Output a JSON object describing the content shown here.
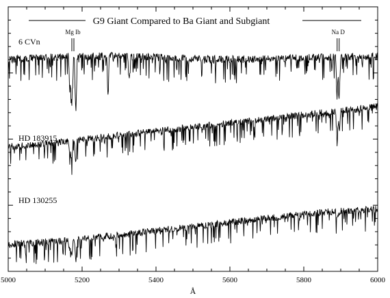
{
  "chart_data": {
    "type": "line",
    "title": "G9 Giant Compared to Ba Giant and Subgiant",
    "xlabel": "Å",
    "ylabel": "",
    "xlim": [
      5000,
      6000
    ],
    "x_ticks": [
      "5000",
      "5200",
      "5400",
      "5600",
      "5800",
      "6000"
    ],
    "grid": false,
    "line_labels": [
      {
        "text": "Mg Ib",
        "x": 5175
      },
      {
        "text": "Na D",
        "x": 5893
      }
    ],
    "series": [
      {
        "name": "6 CVn",
        "x": [
          5000,
          5050,
          5100,
          5150,
          5200,
          5250,
          5300,
          5350,
          5400,
          5450,
          5500,
          5550,
          5600,
          5650,
          5700,
          5750,
          5800,
          5850,
          5900,
          5950,
          6000
        ],
        "values": [
          0.95,
          0.97,
          0.98,
          0.99,
          0.99,
          1.0,
          1.0,
          0.99,
          0.98,
          0.97,
          0.96,
          0.95,
          0.95,
          0.95,
          0.96,
          0.97,
          0.98,
          0.99,
          0.99,
          0.99,
          1.0
        ],
        "lines": [
          {
            "x": 5167,
            "depth": 0.6
          },
          {
            "x": 5172,
            "depth": 0.8
          },
          {
            "x": 5183,
            "depth": 0.9
          },
          {
            "x": 5270,
            "depth": 0.4
          },
          {
            "x": 5328,
            "depth": 0.4
          },
          {
            "x": 5890,
            "depth": 0.65
          },
          {
            "x": 5896,
            "depth": 0.55
          }
        ]
      },
      {
        "name": "HD 183915",
        "x": [
          5000,
          5050,
          5100,
          5150,
          5200,
          5250,
          5300,
          5350,
          5400,
          5450,
          5500,
          5550,
          5600,
          5650,
          5700,
          5750,
          5800,
          5850,
          5900,
          5950,
          6000
        ],
        "values": [
          0.45,
          0.46,
          0.48,
          0.5,
          0.52,
          0.54,
          0.56,
          0.58,
          0.6,
          0.62,
          0.64,
          0.66,
          0.68,
          0.7,
          0.72,
          0.74,
          0.76,
          0.78,
          0.8,
          0.82,
          0.84
        ],
        "lines": [
          {
            "x": 5167,
            "depth": 0.3
          },
          {
            "x": 5172,
            "depth": 0.4
          },
          {
            "x": 5183,
            "depth": 0.45
          },
          {
            "x": 5890,
            "depth": 0.5
          },
          {
            "x": 5896,
            "depth": 0.4
          }
        ]
      },
      {
        "name": "HD 130255",
        "x": [
          5000,
          5050,
          5100,
          5150,
          5200,
          5250,
          5300,
          5350,
          5400,
          5450,
          5500,
          5550,
          5600,
          5650,
          5700,
          5750,
          5800,
          5850,
          5900,
          5950,
          6000
        ],
        "values": [
          0.12,
          0.13,
          0.14,
          0.15,
          0.17,
          0.19,
          0.21,
          0.23,
          0.25,
          0.27,
          0.29,
          0.31,
          0.33,
          0.35,
          0.37,
          0.39,
          0.41,
          0.43,
          0.44,
          0.45,
          0.46
        ],
        "lines": [
          {
            "x": 5167,
            "depth": 0.25
          },
          {
            "x": 5172,
            "depth": 0.35
          },
          {
            "x": 5183,
            "depth": 0.4
          },
          {
            "x": 5890,
            "depth": 0.15
          },
          {
            "x": 5896,
            "depth": 0.1
          }
        ]
      }
    ]
  }
}
